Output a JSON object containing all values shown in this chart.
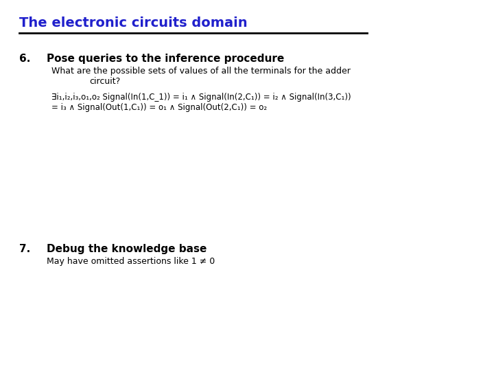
{
  "title": "The electronic circuits domain",
  "title_color": "#2020CC",
  "bg_color": "#FFFFFF",
  "line_color": "#000000",
  "item6_num": "6.",
  "item6_heading": "Pose queries to the inference procedure",
  "item6_body1": "What are the possible sets of values of all the terminals for the adder",
  "item6_body2": "circuit?",
  "item6_formula_line1": "∃i₁,i₂,i₃,o₁,o₂ Signal(In(1,C_1)) = i₁ ∧ Signal(In(2,C₁)) = i₂ ∧ Signal(In(3,C₁))",
  "item6_formula_line2": "= i₃ ∧ Signal(Out(1,C₁)) = o₁ ∧ Signal(Out(2,C₁)) = o₂",
  "item7_num": "7.",
  "item7_heading": "Debug the knowledge base",
  "item7_body": "May have omitted assertions like 1 ≠ 0",
  "title_fontsize": 14,
  "heading_fontsize": 11,
  "body_fontsize": 9,
  "formula_fontsize": 8.5,
  "num_fontsize": 11
}
